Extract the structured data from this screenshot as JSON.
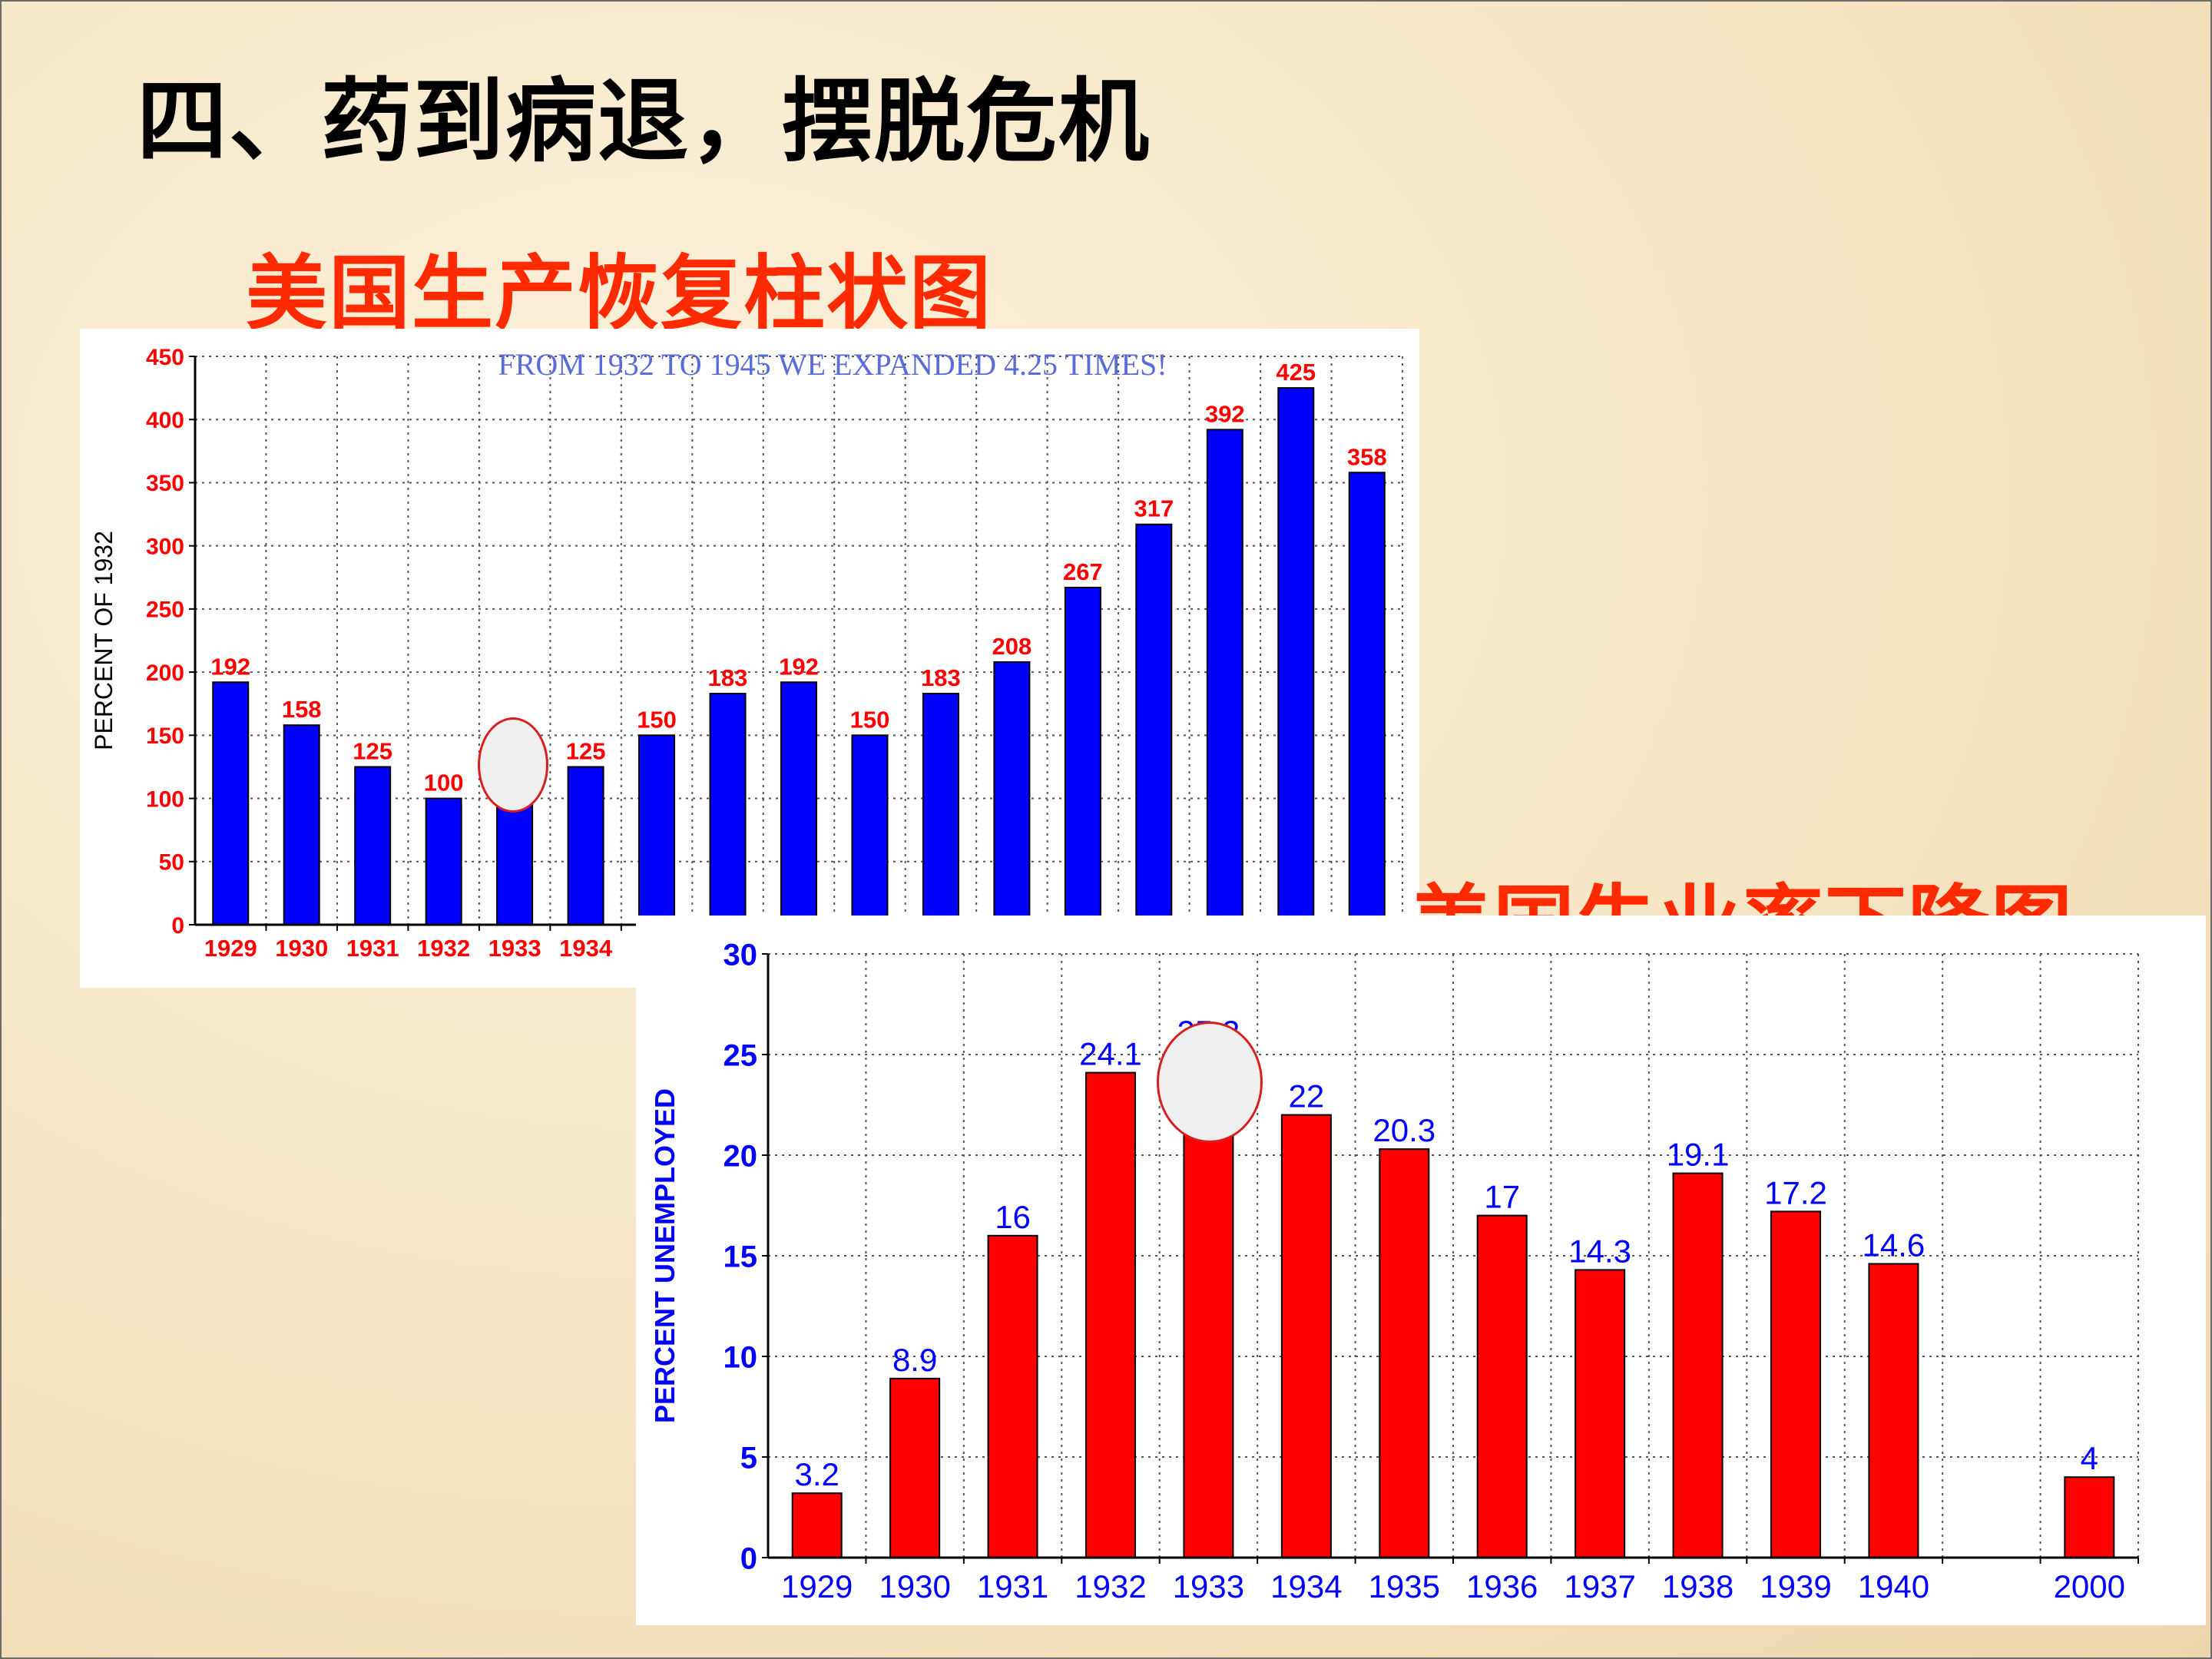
{
  "slide": {
    "title": "四、药到病退，摆脱危机",
    "production_title": "美国生产恢复柱状图",
    "unemployment_title": "美国失业率下降图"
  },
  "colors": {
    "production_bar": "#0000ff",
    "production_label": "#ff0000",
    "unemployment_bar": "#ff0000",
    "unemployment_label": "#0000ff",
    "title_accent": "#ff2a00"
  },
  "chart_data": [
    {
      "type": "bar",
      "title": "FROM 1932 TO 1945 WE EXPANDED 4.25 TIMES!",
      "xlabel": "",
      "ylabel": "PERCENT OF 1932",
      "ylim": [
        0,
        450
      ],
      "yticks": [
        0,
        50,
        100,
        150,
        200,
        250,
        300,
        350,
        400,
        450
      ],
      "grid": true,
      "categories": [
        "1929",
        "1930",
        "1931",
        "1932",
        "1933",
        "1934",
        "",
        "",
        "",
        "",
        "",
        "",
        "",
        "",
        "",
        "",
        ""
      ],
      "values": [
        192,
        158,
        125,
        100,
        108,
        125,
        150,
        183,
        192,
        150,
        183,
        208,
        267,
        317,
        392,
        425,
        358
      ],
      "data_labels": [
        "192",
        "158",
        "125",
        "100",
        "",
        "125",
        "150",
        "183",
        "192",
        "150",
        "183",
        "208",
        "267",
        "317",
        "392",
        "425",
        "358"
      ]
    },
    {
      "type": "bar",
      "title": "",
      "xlabel": "",
      "ylabel": "PERCENT UNEMPLOYED",
      "ylim": [
        0,
        30
      ],
      "yticks": [
        0,
        5,
        10,
        15,
        20,
        25,
        30
      ],
      "grid": true,
      "categories": [
        "1929",
        "1930",
        "1931",
        "1932",
        "1933",
        "1934",
        "1935",
        "1936",
        "1937",
        "1938",
        "1939",
        "1940",
        "",
        "2000"
      ],
      "values": [
        3.2,
        8.9,
        16,
        24.1,
        25.2,
        22,
        20.3,
        17,
        14.3,
        19.1,
        17.2,
        14.6,
        null,
        4
      ],
      "data_labels": [
        "3.2",
        "8.9",
        "16",
        "24.1",
        "25.2",
        "22",
        "20.3",
        "17",
        "14.3",
        "19.1",
        "17.2",
        "14.6",
        "",
        "4"
      ]
    }
  ]
}
